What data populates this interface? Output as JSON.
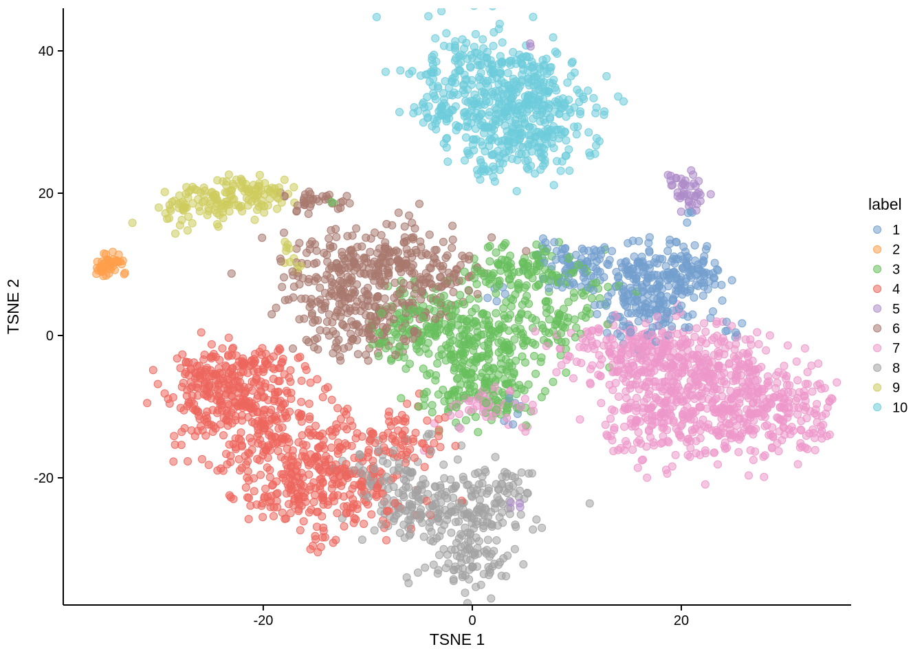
{
  "figure": {
    "background_color": "#ffffff",
    "axis_color": "#000000",
    "text_color": "#000000"
  },
  "legend": {
    "title": "label",
    "items": [
      {
        "label": "1",
        "color": "#729ECE"
      },
      {
        "label": "2",
        "color": "#FF9E4A"
      },
      {
        "label": "3",
        "color": "#67BF5C"
      },
      {
        "label": "4",
        "color": "#ED665D"
      },
      {
        "label": "5",
        "color": "#AD8BC9"
      },
      {
        "label": "6",
        "color": "#A8786E"
      },
      {
        "label": "7",
        "color": "#ED97CA"
      },
      {
        "label": "8",
        "color": "#A2A2A2"
      },
      {
        "label": "9",
        "color": "#CDCC5D"
      },
      {
        "label": "10",
        "color": "#6DCCDA"
      }
    ]
  },
  "chart_data": {
    "type": "scatter",
    "title": "",
    "xlabel": "TSNE 1",
    "ylabel": "TSNE 2",
    "xlim": [
      -39.14,
      36.25
    ],
    "ylim": [
      -37.87,
      45.99
    ],
    "x_ticks": [
      -20,
      0,
      20
    ],
    "y_ticks": [
      -20,
      0,
      20,
      40
    ],
    "grid": false,
    "legend_position": "right",
    "point_radius_px": 5.5,
    "fill_opacity": 0.55,
    "stroke_opacity": 0.9,
    "seed": 42,
    "series": [
      {
        "name": "1",
        "color": "#729ECE",
        "blobs": [
          [
            17.6,
            7.5,
            2.6,
            2.9,
            200
          ],
          [
            11.0,
            9.4,
            2.8,
            1.6,
            80
          ],
          [
            16.2,
            2.5,
            2.0,
            1.8,
            45
          ],
          [
            20.5,
            9.2,
            1.6,
            1.6,
            45
          ],
          [
            7.6,
            11.2,
            1.5,
            0.9,
            14
          ],
          [
            3.9,
            -10.6,
            0.4,
            1.2,
            7
          ],
          [
            2.0,
            5.0,
            1.0,
            1.0,
            5
          ],
          [
            20.9,
            17.5,
            0.3,
            0.5,
            3
          ],
          [
            24.3,
            1.0,
            1.0,
            0.8,
            6
          ]
        ]
      },
      {
        "name": "2",
        "color": "#FF9E4A",
        "blobs": [
          [
            -35.3,
            9.6,
            0.5,
            0.55,
            20
          ],
          [
            -34.4,
            10.4,
            0.5,
            0.55,
            20
          ],
          [
            -34.8,
            9.9,
            0.3,
            0.3,
            5
          ],
          [
            -33.1,
            8.6,
            0.15,
            0.15,
            2
          ]
        ]
      },
      {
        "name": "3",
        "color": "#67BF5C",
        "blobs": [
          [
            0.9,
            -1.0,
            3.6,
            4.0,
            260
          ],
          [
            4.8,
            9.3,
            3.0,
            1.8,
            120
          ],
          [
            -4.9,
            1.5,
            2.0,
            2.8,
            90
          ],
          [
            0.9,
            -8.2,
            2.6,
            2.2,
            100
          ],
          [
            8.6,
            2.6,
            2.0,
            2.2,
            45
          ],
          [
            -8.2,
            -0.5,
            1.0,
            1.5,
            15
          ],
          [
            12.2,
            6.0,
            1.2,
            1.2,
            10
          ],
          [
            -13.4,
            18.6,
            0.2,
            0.2,
            2
          ]
        ]
      },
      {
        "name": "4",
        "color": "#ED665D",
        "blobs": [
          [
            -22.3,
            -9.8,
            3.2,
            3.6,
            240
          ],
          [
            -16.4,
            -16.4,
            3.8,
            3.6,
            240
          ],
          [
            -24.9,
            -5.3,
            2.2,
            1.8,
            90
          ],
          [
            -13.5,
            -22.2,
            4.4,
            2.2,
            160
          ],
          [
            -6.6,
            -14.5,
            2.0,
            2.2,
            60
          ],
          [
            -19.5,
            -4.0,
            1.4,
            1.2,
            30
          ],
          [
            -14.5,
            -29.0,
            0.7,
            0.7,
            12
          ]
        ]
      },
      {
        "name": "5",
        "color": "#AD8BC9",
        "blobs": [
          [
            20.4,
            21.2,
            0.85,
            1.0,
            26
          ],
          [
            20.9,
            18.8,
            0.4,
            1.0,
            12
          ],
          [
            19.2,
            21.9,
            0.4,
            0.4,
            4
          ],
          [
            4.2,
            -23.8,
            0.4,
            0.4,
            4
          ],
          [
            5.7,
            40.8,
            0.2,
            0.2,
            2
          ]
        ]
      },
      {
        "name": "6",
        "color": "#A8786E",
        "blobs": [
          [
            -13.0,
            6.6,
            3.3,
            4.2,
            190
          ],
          [
            -7.1,
            10.3,
            3.6,
            2.7,
            170
          ],
          [
            -10.3,
            1.8,
            3.0,
            2.2,
            90
          ],
          [
            -14.9,
            18.9,
            1.5,
            0.75,
            34
          ],
          [
            -3.8,
            4.5,
            2.0,
            2.2,
            30
          ],
          [
            -1.5,
            9.0,
            1.2,
            1.0,
            12
          ]
        ]
      },
      {
        "name": "7",
        "color": "#ED97CA",
        "blobs": [
          [
            20.6,
            -4.0,
            4.0,
            2.8,
            240
          ],
          [
            24.6,
            -9.8,
            4.2,
            3.8,
            290
          ],
          [
            14.8,
            -2.0,
            3.0,
            2.4,
            140
          ],
          [
            18.1,
            -12.6,
            3.2,
            3.2,
            140
          ],
          [
            30.3,
            -10.6,
            2.0,
            2.8,
            80
          ],
          [
            1.0,
            -9.6,
            2.0,
            1.6,
            40
          ],
          [
            33.0,
            -13.9,
            0.4,
            0.4,
            4
          ],
          [
            -4.5,
            -16.0,
            0.3,
            0.3,
            2
          ],
          [
            5.0,
            -13.0,
            0.8,
            0.8,
            4
          ]
        ]
      },
      {
        "name": "8",
        "color": "#A2A2A2",
        "blobs": [
          [
            -5.6,
            -22.2,
            3.0,
            2.8,
            130
          ],
          [
            0.9,
            -24.1,
            3.0,
            2.4,
            110
          ],
          [
            -0.1,
            -31.4,
            2.0,
            2.4,
            85
          ],
          [
            -9.2,
            -18.4,
            1.8,
            1.6,
            30
          ],
          [
            -5.0,
            -27.5,
            1.5,
            1.0,
            12
          ],
          [
            3.8,
            -21.0,
            1.2,
            1.2,
            12
          ],
          [
            -4.2,
            -14.0,
            0.4,
            0.4,
            3
          ]
        ]
      },
      {
        "name": "9",
        "color": "#CDCC5D",
        "blobs": [
          [
            -23.5,
            19.1,
            2.9,
            1.5,
            105
          ],
          [
            -28.2,
            17.3,
            1.2,
            1.0,
            22
          ],
          [
            -19.3,
            19.6,
            1.0,
            1.0,
            18
          ],
          [
            -21.5,
            21.3,
            1.5,
            0.6,
            15
          ],
          [
            -17.3,
            10.5,
            0.4,
            0.8,
            7
          ],
          [
            -17.6,
            12.6,
            0.3,
            0.5,
            4
          ]
        ]
      },
      {
        "name": "10",
        "color": "#6DCCDA",
        "blobs": [
          [
            0.9,
            35.5,
            3.5,
            3.8,
            250
          ],
          [
            6.1,
            31.8,
            3.0,
            4.2,
            250
          ],
          [
            3.2,
            26.5,
            2.6,
            1.9,
            90
          ],
          [
            1.2,
            23.4,
            0.5,
            0.6,
            6
          ],
          [
            -2.6,
            31.0,
            1.0,
            2.0,
            30
          ]
        ]
      }
    ]
  }
}
